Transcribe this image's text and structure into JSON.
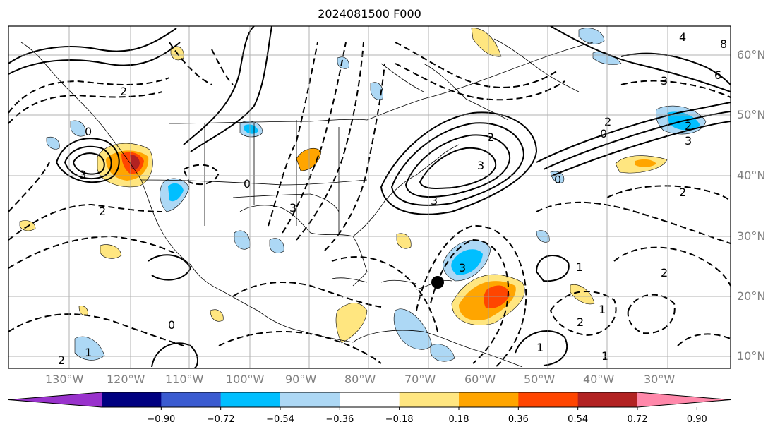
{
  "title": "2024081500 F000",
  "lat_labels": [
    "60°N",
    "50°N",
    "40°N",
    "30°N",
    "20°N",
    "10°N"
  ],
  "lon_labels": [
    "130°W",
    "120°W",
    "110°W",
    "100°W",
    "90°W",
    "80°W",
    "70°W",
    "60°W",
    "50°W",
    "40°W",
    "30°W"
  ],
  "colorbar": {
    "colors": [
      "#9932cc",
      "#000080",
      "#3a5bd0",
      "#00bfff",
      "#add8f5",
      "#ffffff",
      "#ffe680",
      "#ffa500",
      "#ff4500",
      "#b22222",
      "#ff88aa"
    ],
    "ticks": [
      "−0.90",
      "−0.72",
      "−0.54",
      "−0.36",
      "−0.18",
      "0.18",
      "0.36",
      "0.54",
      "0.72",
      "0.90"
    ]
  },
  "contour_labels": [
    "1",
    "2",
    "3",
    "4",
    "0",
    "0",
    "3",
    "3",
    "2",
    "2",
    "3",
    "3",
    "0",
    "2",
    "3",
    "1",
    "2",
    "2",
    "1",
    "2",
    "0",
    "2",
    "3",
    "0",
    "1",
    "1",
    "2",
    "6",
    "8"
  ]
}
